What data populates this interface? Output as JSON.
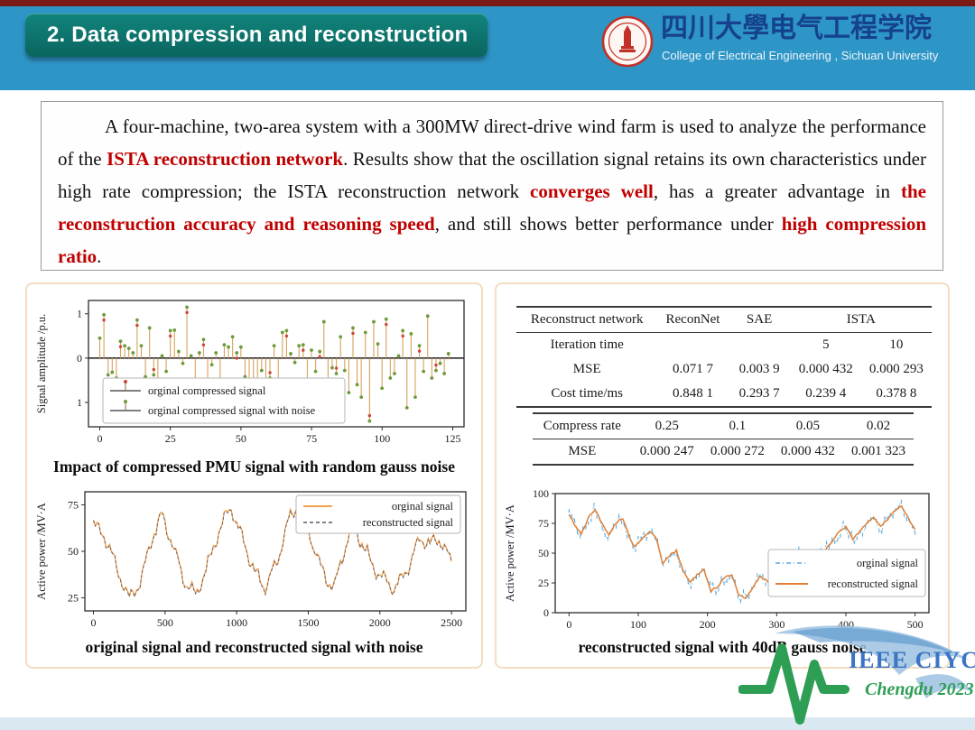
{
  "slide": {
    "title": "2. Data compression and reconstruction",
    "logo": {
      "cn": "四川大學电气工程学院",
      "en": "College of Electrical Engineering , Sichuan University"
    },
    "summary_segments": [
      {
        "text": "A four-machine, two-area system with a 300MW direct-drive wind farm is used to analyze the performance of the ",
        "style": "normal"
      },
      {
        "text": "ISTA reconstruction network",
        "style": "red"
      },
      {
        "text": ". Results show that the oscillation signal retains its own characteristics under high rate compression; the ISTA reconstruction network ",
        "style": "normal"
      },
      {
        "text": "converges well",
        "style": "red"
      },
      {
        "text": ", has a greater advantage in ",
        "style": "normal"
      },
      {
        "text": "the reconstruction accuracy and reasoning speed",
        "style": "red"
      },
      {
        "text": ", and still shows better performance under ",
        "style": "normal"
      },
      {
        "text": "high compression ratio",
        "style": "red"
      },
      {
        "text": ".",
        "style": "normal"
      }
    ],
    "footer_logo": {
      "brand": "IEEE CIYCEE",
      "event": "Chengdu 2023"
    }
  },
  "tables": {
    "network": {
      "header": [
        "Reconstruct network",
        "ReconNet",
        "SAE",
        "ISTA"
      ],
      "header_spans": [
        1,
        1,
        1,
        2
      ],
      "rows": [
        [
          "Iteration time",
          "",
          "",
          "5",
          "10"
        ],
        [
          "MSE",
          "0.071 7",
          "0.003 9",
          "0.000 432",
          "0.000 293"
        ],
        [
          "Cost time/ms",
          "0.848 1",
          "0.293 7",
          "0.239 4",
          "0.378 8"
        ]
      ]
    },
    "compress": {
      "rows": [
        [
          "Compress rate",
          "0.25",
          "0.1",
          "0.05",
          "0.02"
        ],
        [
          "MSE",
          "0.000 247",
          "0.000 272",
          "0.000 432",
          "0.001 323"
        ]
      ]
    }
  },
  "chart_data": [
    {
      "id": "stem",
      "type": "stem",
      "title": "Impact of compressed PMU signal with random gauss noise",
      "xlabel": "",
      "ylabel": "Signal amplitude /p.u.",
      "xlim": [
        -4,
        129
      ],
      "ylim": [
        -1.55,
        1.3
      ],
      "xticks": [
        0,
        25,
        50,
        75,
        100,
        125
      ],
      "ytick_values": [
        1,
        0,
        -1
      ],
      "ytick_labels": [
        "1",
        "0",
        "1"
      ],
      "legend": [
        "orginal compressed signal",
        "orginal compressed signal with noise"
      ],
      "legend_position": "bottom-left",
      "x_step": 1.47,
      "values": [
        0.45,
        0.98,
        -0.38,
        -0.32,
        -0.45,
        0.38,
        0.28,
        0.22,
        0.12,
        0.86,
        0.28,
        -0.42,
        0.68,
        -0.38,
        -0.62,
        0.05,
        -0.3,
        0.62,
        0.63,
        0.15,
        -0.12,
        1.15,
        0.05,
        -0.62,
        0.12,
        0.42,
        -0.48,
        -0.15,
        0.12,
        -0.65,
        0.3,
        0.25,
        0.48,
        0.12,
        0.25,
        -0.42,
        -0.48,
        -0.65,
        -0.62,
        -0.28,
        -0.68,
        -0.45,
        0.28,
        -0.48,
        0.58,
        0.62,
        0.1,
        -0.1,
        0.28,
        0.3,
        -0.48,
        0.18,
        -0.3,
        0.15,
        0.82,
        -0.55,
        -0.22,
        -0.35,
        0.48,
        -0.28,
        -0.78,
        0.68,
        -0.6,
        -0.88,
        0.58,
        -1.42,
        0.82,
        0.32,
        -0.68,
        0.88,
        -0.45,
        -0.35,
        0.05,
        0.62,
        -1.12,
        0.55,
        -0.88,
        0.28,
        -0.3,
        0.95,
        -0.45,
        -0.28,
        -0.12,
        -0.35,
        0.1
      ],
      "colors": {
        "stem": "#d7a15c",
        "marker_original": "#cf4436",
        "marker_noise": "#6d9b3a"
      }
    },
    {
      "id": "wave",
      "type": "line",
      "title": "original signal and reconstructed signal with noise",
      "xlabel": "",
      "ylabel": "Active power /MV·A",
      "xlim": [
        -60,
        2600
      ],
      "ylim": [
        18,
        82
      ],
      "xticks": [
        0,
        500,
        1000,
        1500,
        2000,
        2500
      ],
      "yticks": [
        25,
        50,
        75
      ],
      "legend": [
        "orginal signal",
        "reconstructed signal"
      ],
      "legend_position": "top-right",
      "ripple": {
        "amp1": 3.0,
        "period1": 17.7,
        "amp2": 1.5,
        "period2": 6.1,
        "noise": 1.6
      },
      "points": [
        [
          0,
          65
        ],
        [
          80,
          58
        ],
        [
          160,
          42
        ],
        [
          250,
          24
        ],
        [
          330,
          34
        ],
        [
          410,
          58
        ],
        [
          480,
          70
        ],
        [
          560,
          52
        ],
        [
          640,
          33
        ],
        [
          720,
          27
        ],
        [
          800,
          43
        ],
        [
          880,
          62
        ],
        [
          960,
          74
        ],
        [
          1040,
          57
        ],
        [
          1120,
          40
        ],
        [
          1200,
          31
        ],
        [
          1280,
          44
        ],
        [
          1360,
          66
        ],
        [
          1440,
          77
        ],
        [
          1520,
          57
        ],
        [
          1600,
          39
        ],
        [
          1680,
          30
        ],
        [
          1740,
          48
        ],
        [
          1810,
          65
        ],
        [
          1880,
          54
        ],
        [
          1950,
          42
        ],
        [
          2020,
          35
        ],
        [
          2100,
          30
        ],
        [
          2160,
          36
        ],
        [
          2220,
          46
        ],
        [
          2280,
          58
        ],
        [
          2350,
          54
        ],
        [
          2420,
          57
        ],
        [
          2500,
          44
        ]
      ],
      "colors": {
        "original": "#f2a34b",
        "reconstructed": "#5d5566"
      }
    },
    {
      "id": "recon",
      "type": "line+scatter",
      "title": "reconstructed signal with 40dB gauss noise",
      "xlabel": "",
      "ylabel": "Active power /MV·A",
      "xlim": [
        -20,
        520
      ],
      "ylim": [
        0,
        100
      ],
      "xticks": [
        0,
        100,
        200,
        300,
        400,
        500
      ],
      "yticks": [
        0,
        25,
        50,
        75,
        100
      ],
      "legend": [
        "orginal signal",
        "reconstructed signal"
      ],
      "legend_position": "right-middle",
      "noise_amplitude": 11,
      "points": [
        [
          0,
          82
        ],
        [
          10,
          72
        ],
        [
          18,
          66
        ],
        [
          28,
          80
        ],
        [
          38,
          87
        ],
        [
          48,
          74
        ],
        [
          58,
          65
        ],
        [
          68,
          76
        ],
        [
          78,
          79
        ],
        [
          88,
          62
        ],
        [
          95,
          55
        ],
        [
          105,
          62
        ],
        [
          115,
          68
        ],
        [
          125,
          64
        ],
        [
          135,
          42
        ],
        [
          145,
          48
        ],
        [
          155,
          52
        ],
        [
          165,
          35
        ],
        [
          175,
          25
        ],
        [
          185,
          32
        ],
        [
          195,
          36
        ],
        [
          205,
          18
        ],
        [
          215,
          22
        ],
        [
          225,
          30
        ],
        [
          235,
          32
        ],
        [
          245,
          15
        ],
        [
          255,
          12
        ],
        [
          265,
          20
        ],
        [
          275,
          30
        ],
        [
          285,
          28
        ],
        [
          295,
          18
        ],
        [
          300,
          16
        ],
        [
          310,
          28
        ],
        [
          320,
          40
        ],
        [
          330,
          48
        ],
        [
          340,
          52
        ],
        [
          350,
          50
        ],
        [
          360,
          45
        ],
        [
          370,
          52
        ],
        [
          380,
          60
        ],
        [
          390,
          68
        ],
        [
          400,
          72
        ],
        [
          410,
          62
        ],
        [
          420,
          68
        ],
        [
          430,
          75
        ],
        [
          440,
          80
        ],
        [
          450,
          72
        ],
        [
          460,
          78
        ],
        [
          470,
          85
        ],
        [
          480,
          90
        ],
        [
          490,
          80
        ],
        [
          500,
          70
        ]
      ],
      "colors": {
        "original": "#58a8d9",
        "reconstructed": "#e07f35"
      }
    }
  ]
}
